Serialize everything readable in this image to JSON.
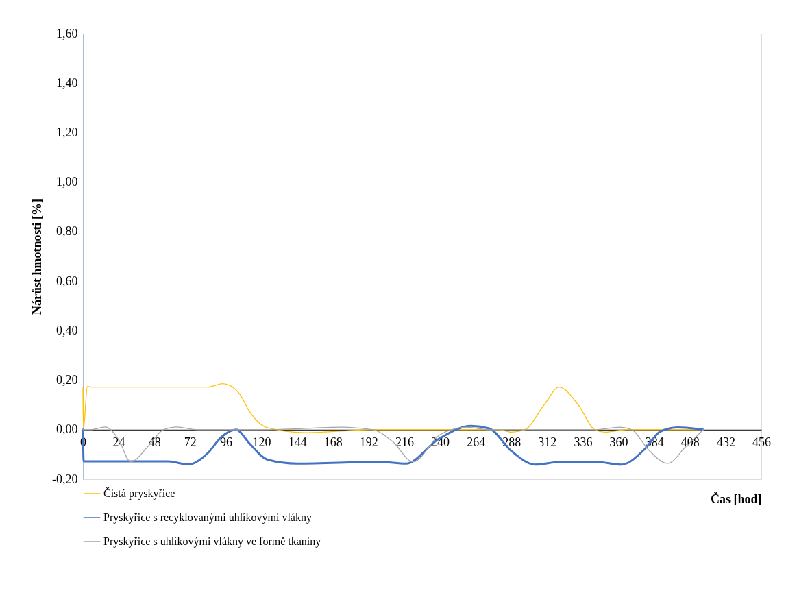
{
  "chart_data": {
    "type": "line",
    "xlabel": "Čas [hod]",
    "ylabel": "Nárůst hmotnosti [%]",
    "xlim": [
      0,
      456
    ],
    "xticks": [
      0,
      24,
      48,
      72,
      96,
      120,
      144,
      168,
      192,
      216,
      240,
      264,
      288,
      312,
      336,
      360,
      384,
      408,
      432,
      456
    ],
    "ylim": [
      -0.2,
      1.6
    ],
    "yticks": [
      {
        "value": -0.2,
        "label": "-0,20"
      },
      {
        "value": 0,
        "label": "0,00"
      },
      {
        "value": 0.2,
        "label": "0,20"
      },
      {
        "value": 0.4,
        "label": "0,40"
      },
      {
        "value": 0.6,
        "label": "0,60"
      },
      {
        "value": 0.8,
        "label": "0,80"
      },
      {
        "value": 1.0,
        "label": "1,00"
      },
      {
        "value": 1.2,
        "label": "1,20"
      },
      {
        "value": 1.4,
        "label": "1,40"
      },
      {
        "value": 1.6,
        "label": "1,60"
      }
    ],
    "grid": false,
    "legend": "bottom",
    "marker": "none",
    "line_style": "solid",
    "series": [
      {
        "name": "Čistá pryskyřice",
        "color": "#ffc000",
        "x": [
          0,
          0.3,
          3,
          6,
          24,
          48,
          72,
          84,
          94,
          105,
          112,
          124,
          150,
          195,
          240,
          280,
          288,
          297,
          310,
          320,
          333,
          344,
          351,
          365,
          400,
          417
        ],
        "values": [
          0.17,
          0,
          0.175,
          0.172,
          0.172,
          0.172,
          0.172,
          0.172,
          0.186,
          0.147,
          0.073,
          0.008,
          -0.012,
          0,
          0,
          0,
          -0.01,
          0,
          0.1,
          0.172,
          0.1,
          0,
          -0.01,
          0,
          0,
          0
        ]
      },
      {
        "name": "Pryskyřice s recyklovanými uhlíkovými vlákny",
        "color": "#4472c4",
        "x": [
          0,
          0.5,
          24,
          57,
          71,
          84,
          93,
          103,
          112,
          124,
          144,
          200,
          217,
          239,
          261,
          273,
          288,
          304,
          321,
          345,
          362,
          378,
          388,
          400,
          417
        ],
        "values": [
          0,
          -0.128,
          -0.128,
          -0.128,
          -0.14,
          -0.094,
          -0.03,
          0,
          -0.056,
          -0.121,
          -0.137,
          -0.13,
          -0.137,
          -0.038,
          0.015,
          0.005,
          -0.086,
          -0.141,
          -0.13,
          -0.13,
          -0.141,
          -0.076,
          -0.008,
          0.009,
          0
        ]
      },
      {
        "name": "Pryskyřice s uhlíkovými vlákny ve formě tkaniny",
        "color": "#a5a5a5",
        "x": [
          0,
          5,
          15,
          24,
          32,
          44,
          54,
          63,
          77,
          125,
          174,
          195,
          208,
          222,
          240,
          258,
          272,
          345,
          361,
          369,
          380,
          393,
          405,
          417
        ],
        "values": [
          0,
          0,
          0.011,
          -0.04,
          -0.13,
          -0.066,
          0,
          0.011,
          0,
          0,
          0.01,
          0,
          -0.047,
          -0.13,
          -0.02,
          0.01,
          0,
          0,
          0.01,
          0,
          -0.08,
          -0.136,
          -0.07,
          0
        ]
      }
    ]
  }
}
